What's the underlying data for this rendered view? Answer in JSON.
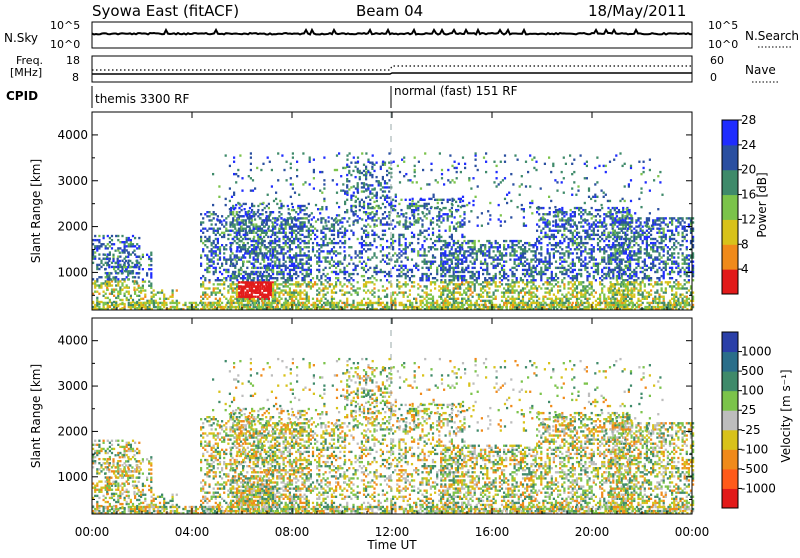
{
  "header": {
    "title": "Syowa East (fitACF)",
    "beam": "Beam 04",
    "date": "18/May/2011"
  },
  "strip": {
    "nsky_label": "N.Sky",
    "nsky_top": "10^5",
    "nsky_bottom": "10^0",
    "nsearch_label": "N.Search",
    "nsearch_top": "10^5",
    "nsearch_bottom": "10^0",
    "freq_label_1": "Freq.",
    "freq_label_2": "[MHz]",
    "freq_top": "18",
    "freq_bottom": "8",
    "nave_label": "Nave",
    "nave_top": "60",
    "nave_bottom": "0",
    "cpid_label": "CPID",
    "cpid_1": "themis 3300 RF",
    "cpid_2": "normal (fast) 151 RF"
  },
  "chart_data": [
    {
      "type": "heatmap",
      "name": "power",
      "ylabel": "Slant Range [km]",
      "xlabel": "Time UT",
      "y_ticks": [
        "1000",
        "2000",
        "3000",
        "4000"
      ],
      "ylim": [
        180,
        4500
      ],
      "colorbar_label": "Power [dB]",
      "colorbar_ticks": [
        "4",
        "8",
        "12",
        "16",
        "20",
        "24",
        "28"
      ],
      "colorbar_colors": [
        "#1f2cff",
        "#2a4fa0",
        "#3f8a6a",
        "#7bc34a",
        "#d8c21a",
        "#f08a1a",
        "#e21a1a"
      ]
    },
    {
      "type": "heatmap",
      "name": "velocity",
      "ylabel": "Slant Range [km]",
      "xlabel": "Time UT",
      "y_ticks": [
        "1000",
        "2000",
        "3000",
        "4000"
      ],
      "ylim": [
        180,
        4500
      ],
      "colorbar_label": "Velocity [m s⁻¹]",
      "colorbar_ticks": [
        "1000",
        "500",
        "100",
        "25",
        "-25",
        "-100",
        "-500",
        "-1000"
      ],
      "colorbar_colors": [
        "#2a3fa8",
        "#2a6e8a",
        "#3f8a6a",
        "#7bc34a",
        "#bdbdbd",
        "#d8c21a",
        "#f08a1a",
        "#ff5a1a",
        "#e21a1a"
      ]
    }
  ],
  "x_ticks": [
    "00:00",
    "04:00",
    "08:00",
    "12:00",
    "16:00",
    "20:00",
    "00:00"
  ],
  "x_label": "Time UT"
}
